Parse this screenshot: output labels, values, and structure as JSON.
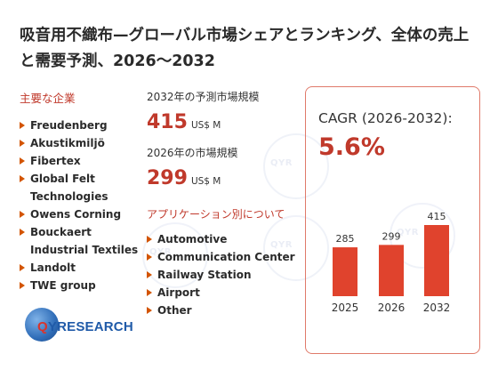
{
  "title": "吸音用不織布—グローバル市場シェアとランキング、全体の売上と需要予測、2026～2032",
  "companies": {
    "heading": "主要な企業",
    "items": [
      "Freudenberg",
      "Akustikmiljö",
      "Fibertex",
      "Global Felt Technologies",
      "Owens Corning",
      "Bouckaert Industrial Textiles",
      "Landolt",
      "TWE group"
    ]
  },
  "market": {
    "size_2032_label": "2032年の予測市場規模",
    "size_2032_value": "415",
    "size_2032_unit": "US$ M",
    "size_2026_label": "2026年の市場規模",
    "size_2026_value": "299",
    "size_2026_unit": "US$ M"
  },
  "applications": {
    "heading": "アプリケーション別について",
    "items": [
      "Automotive",
      "Communication Center",
      "Railway Station",
      "Airport",
      "Other"
    ]
  },
  "cagr": {
    "label": "CAGR (2026-2032):",
    "value": "5.6%"
  },
  "logo": {
    "q": "Q",
    "rest": "YRESEARCH"
  },
  "colors": {
    "accent": "#c0392b",
    "bar": "#e0432d",
    "panel_border": "#e07a6a"
  },
  "chart_data": {
    "type": "bar",
    "categories": [
      "2025",
      "2026",
      "2032"
    ],
    "values": [
      285,
      299,
      415
    ],
    "data_labels": [
      "285",
      "299",
      "415"
    ],
    "ylim": [
      0,
      415
    ],
    "title": "",
    "xlabel": "",
    "ylabel": "",
    "grid": false
  }
}
